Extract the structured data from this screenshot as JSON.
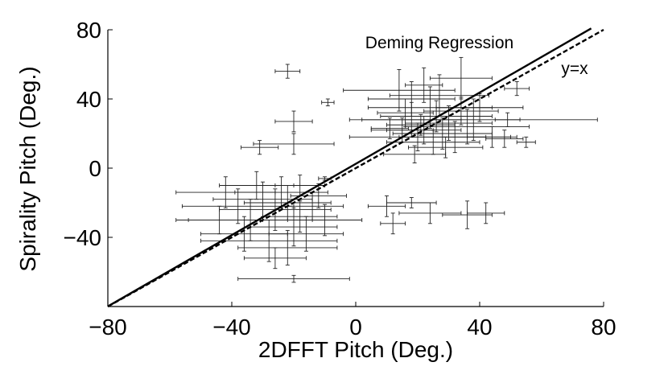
{
  "chart_data": {
    "type": "scatter",
    "xlabel": "2DFFT Pitch (Deg.)",
    "ylabel": "Spirality Pitch (Deg.)",
    "xlim": [
      -80,
      80
    ],
    "ylim": [
      -80,
      80
    ],
    "x_ticks": [
      -80,
      -40,
      0,
      40,
      80
    ],
    "y_ticks": [
      -40,
      0,
      40,
      80
    ],
    "x_tick_labels": [
      "−80",
      "−40",
      "0",
      "40",
      "80"
    ],
    "y_tick_labels": [
      "−40",
      "0",
      "40",
      "80"
    ],
    "grid": false,
    "annotations": {
      "regression_label": "Deming Regression",
      "identity_label": "y=x"
    },
    "lines": {
      "deming": {
        "slope": 1.03,
        "intercept": 2.5,
        "x_range": [
          -80,
          76
        ],
        "style": "solid"
      },
      "identity": {
        "slope": 1,
        "intercept": 0,
        "x_range": [
          -80,
          80
        ],
        "style": "dashed"
      }
    },
    "points": [
      {
        "x": -22,
        "y": 56,
        "xerr": 4,
        "yerr": 4
      },
      {
        "x": -9,
        "y": 38,
        "xerr": 2,
        "yerr": 2
      },
      {
        "x": -20,
        "y": 27,
        "xerr": 6,
        "yerr": 6
      },
      {
        "x": -31,
        "y": 12,
        "xerr": 6,
        "yerr": 4
      },
      {
        "x": -20,
        "y": 14,
        "xerr": 13,
        "yerr": 6
      },
      {
        "x": -10,
        "y": -6,
        "xerr": 2,
        "yerr": 1
      },
      {
        "x": -20,
        "y": -64,
        "xerr": 18,
        "yerr": 2
      },
      {
        "x": 18,
        "y": 28,
        "xerr": 16,
        "yerr": 10
      },
      {
        "x": 22,
        "y": 22,
        "xerr": 12,
        "yerr": 8
      },
      {
        "x": 26,
        "y": 30,
        "xerr": 18,
        "yerr": 9
      },
      {
        "x": 20,
        "y": 18,
        "xerr": 22,
        "yerr": 8
      },
      {
        "x": 30,
        "y": 26,
        "xerr": 14,
        "yerr": 10
      },
      {
        "x": 15,
        "y": 22,
        "xerr": 10,
        "yerr": 7
      },
      {
        "x": 28,
        "y": 20,
        "xerr": 16,
        "yerr": 9
      },
      {
        "x": 24,
        "y": 35,
        "xerr": 20,
        "yerr": 12
      },
      {
        "x": 18,
        "y": 40,
        "xerr": 14,
        "yerr": 10
      },
      {
        "x": 34,
        "y": 33,
        "xerr": 12,
        "yerr": 8
      },
      {
        "x": 21,
        "y": 25,
        "xerr": 11,
        "yerr": 6
      },
      {
        "x": 32,
        "y": 18,
        "xerr": 18,
        "yerr": 9
      },
      {
        "x": 27,
        "y": 42,
        "xerr": 16,
        "yerr": 12
      },
      {
        "x": 16,
        "y": 32,
        "xerr": 9,
        "yerr": 8
      },
      {
        "x": 36,
        "y": 24,
        "xerr": 20,
        "yerr": 10
      },
      {
        "x": 25,
        "y": 15,
        "xerr": 15,
        "yerr": 7
      },
      {
        "x": 38,
        "y": 28,
        "xerr": 40,
        "yerr": 12
      },
      {
        "x": 14,
        "y": 45,
        "xerr": 18,
        "yerr": 12
      },
      {
        "x": 44,
        "y": 18,
        "xerr": 8,
        "yerr": 6
      },
      {
        "x": 48,
        "y": 17,
        "xerr": 6,
        "yerr": 5
      },
      {
        "x": 55,
        "y": 15,
        "xerr": 3,
        "yerr": 3
      },
      {
        "x": 49,
        "y": 28,
        "xerr": 4,
        "yerr": 4
      },
      {
        "x": 52,
        "y": 46,
        "xerr": 4,
        "yerr": 4
      },
      {
        "x": 22,
        "y": 48,
        "xerr": 6,
        "yerr": 10
      },
      {
        "x": 34,
        "y": 52,
        "xerr": 10,
        "yerr": 12
      },
      {
        "x": 11,
        "y": 23,
        "xerr": 6,
        "yerr": 6
      },
      {
        "x": 40,
        "y": 35,
        "xerr": 14,
        "yerr": 8
      },
      {
        "x": 29,
        "y": 12,
        "xerr": 12,
        "yerr": 6
      },
      {
        "x": 19,
        "y": 8,
        "xerr": 10,
        "yerr": 5
      },
      {
        "x": -22,
        "y": -20,
        "xerr": 14,
        "yerr": 10
      },
      {
        "x": -26,
        "y": -24,
        "xerr": 18,
        "yerr": 12
      },
      {
        "x": -18,
        "y": -28,
        "xerr": 12,
        "yerr": 9
      },
      {
        "x": -30,
        "y": -18,
        "xerr": 16,
        "yerr": 10
      },
      {
        "x": -14,
        "y": -22,
        "xerr": 10,
        "yerr": 8
      },
      {
        "x": -34,
        "y": -30,
        "xerr": 20,
        "yerr": 12
      },
      {
        "x": -20,
        "y": -34,
        "xerr": 14,
        "yerr": 11
      },
      {
        "x": -24,
        "y": -14,
        "xerr": 15,
        "yerr": 9
      },
      {
        "x": -38,
        "y": -22,
        "xerr": 18,
        "yerr": 10
      },
      {
        "x": -16,
        "y": -38,
        "xerr": 12,
        "yerr": 10
      },
      {
        "x": -28,
        "y": -42,
        "xerr": 22,
        "yerr": 12
      },
      {
        "x": -12,
        "y": -16,
        "xerr": 9,
        "yerr": 7
      },
      {
        "x": -42,
        "y": -14,
        "xerr": 16,
        "yerr": 9
      },
      {
        "x": -32,
        "y": -10,
        "xerr": 12,
        "yerr": 8
      },
      {
        "x": -22,
        "y": -46,
        "xerr": 16,
        "yerr": 10
      },
      {
        "x": -36,
        "y": -38,
        "xerr": 14,
        "yerr": 10
      },
      {
        "x": -26,
        "y": -52,
        "xerr": 10,
        "yerr": 6
      },
      {
        "x": -10,
        "y": -30,
        "xerr": 12,
        "yerr": 9
      },
      {
        "x": -44,
        "y": -30,
        "xerr": 14,
        "yerr": 8
      },
      {
        "x": -18,
        "y": -10,
        "xerr": 8,
        "yerr": 6
      },
      {
        "x": 12,
        "y": -32,
        "xerr": 4,
        "yerr": 6
      },
      {
        "x": 10,
        "y": -22,
        "xerr": 6,
        "yerr": 6
      },
      {
        "x": 18,
        "y": -20,
        "xerr": 8,
        "yerr": 3
      },
      {
        "x": 24,
        "y": -26,
        "xerr": 10,
        "yerr": 6
      },
      {
        "x": 36,
        "y": -27,
        "xerr": 8,
        "yerr": 8
      },
      {
        "x": 42,
        "y": -26,
        "xerr": 6,
        "yerr": 6
      }
    ]
  }
}
